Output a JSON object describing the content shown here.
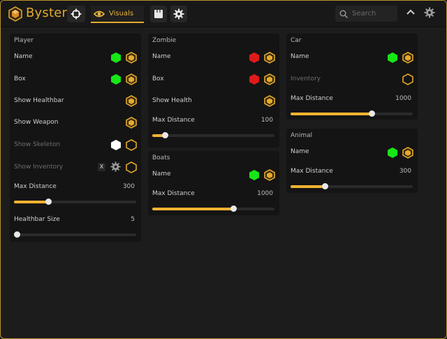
{
  "app": {
    "title": "Byster"
  },
  "toolbar": {
    "visuals_label": "Visuals",
    "search_placeholder": "Search"
  },
  "colors": {
    "accent": "#e3a92e",
    "green": "#17e617",
    "red": "#e01a1a",
    "white": "#ffffff"
  },
  "player": {
    "title": "Player",
    "name": "Name",
    "box": "Box",
    "show_healthbar": "Show Healthbar",
    "show_weapon": "Show Weapon",
    "show_skeleton": "Show Skeleton",
    "show_inventory": "Show Inventory",
    "inventory_key": "X",
    "max_distance": {
      "label": "Max Distance",
      "value": "300",
      "fraction": 0.28
    },
    "healthbar_size": {
      "label": "Healthbar Size",
      "value": "5",
      "fraction": 0.02
    }
  },
  "zombie": {
    "title": "Zombie",
    "name": "Name",
    "box": "Box",
    "show_health": "Show Health",
    "max_distance": {
      "label": "Max Distance",
      "value": "100",
      "fraction": 0.1
    }
  },
  "boats": {
    "title": "Boats",
    "name": "Name",
    "max_distance": {
      "label": "Max Distance",
      "value": "1000",
      "fraction": 0.66
    }
  },
  "car": {
    "title": "Car",
    "name": "Name",
    "inventory": "Inventory",
    "max_distance": {
      "label": "Max Distance",
      "value": "1000",
      "fraction": 0.66
    }
  },
  "animal": {
    "title": "Animal",
    "name": "Name",
    "max_distance": {
      "label": "Max Distance",
      "value": "300",
      "fraction": 0.28
    }
  }
}
